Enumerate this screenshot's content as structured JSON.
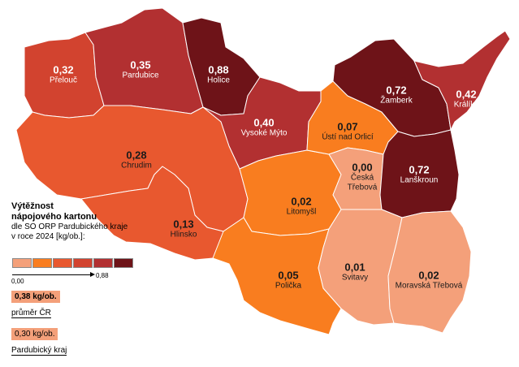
{
  "legend": {
    "title_line1": "Výtěžnost",
    "title_line2": "nápojového kartonu",
    "subtitle": "dle SO ORP Pardubického kraje v roce 2024 [kg/ob.]:",
    "scale_colors": [
      "#f4a07a",
      "#f97d1f",
      "#e8582f",
      "#d2432f",
      "#b23031",
      "#6e1318"
    ],
    "scale_min": "0,00",
    "scale_max": "0,88",
    "cr_value": "0,38 kg/ob.",
    "cr_label": "průměr ČR",
    "kraj_value": "0,30 kg/ob.",
    "kraj_label": "Pardubický kraj"
  },
  "regions": {
    "prelouc": {
      "value": "0,32",
      "name": "Přelouč",
      "color": "#d2432f"
    },
    "pardubice": {
      "value": "0,35",
      "name": "Pardubice",
      "color": "#b23031"
    },
    "holice": {
      "value": "0,88",
      "name": "Holice",
      "color": "#6e1318"
    },
    "zamberk": {
      "value": "0,72",
      "name": "Žamberk",
      "color": "#6e1318"
    },
    "kraliky": {
      "value": "0,42",
      "name": "Králíky",
      "color": "#b23031"
    },
    "vysoke": {
      "value": "0,40",
      "name": "Vysoké Mýto",
      "color": "#b23031"
    },
    "usti": {
      "value": "0,07",
      "name": "Ústí nad Orlicí",
      "color": "#f97d1f"
    },
    "chrudim": {
      "value": "0,28",
      "name": "Chrudim",
      "color": "#e8582f"
    },
    "ceska": {
      "value": "0,00",
      "name": "Česká Třebová",
      "color": "#f4a07a"
    },
    "lanskroun": {
      "value": "0,72",
      "name": "Lanškroun",
      "color": "#6e1318"
    },
    "litomysl": {
      "value": "0,02",
      "name": "Litomyšl",
      "color": "#f97d1f"
    },
    "hlinsko": {
      "value": "0,13",
      "name": "Hlinsko",
      "color": "#e8582f"
    },
    "policka": {
      "value": "0,05",
      "name": "Polička",
      "color": "#f97d1f"
    },
    "svitavy": {
      "value": "0,01",
      "name": "Svitavy",
      "color": "#f4a07a"
    },
    "moravska": {
      "value": "0,02",
      "name": "Moravská Třebová",
      "color": "#f4a07a"
    }
  }
}
